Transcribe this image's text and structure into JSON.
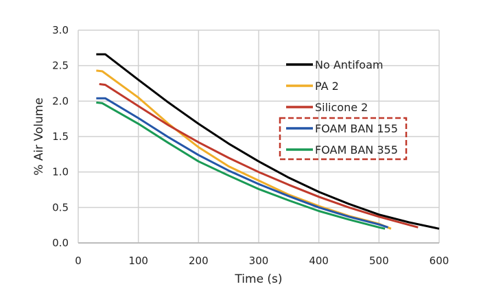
{
  "chart_data": {
    "type": "line",
    "title": "",
    "xlabel": "Time (s)",
    "ylabel": "% Air Volume",
    "xlim": [
      0,
      600
    ],
    "ylim": [
      0,
      3.0
    ],
    "xticks": [
      "0",
      "100",
      "200",
      "300",
      "400",
      "500",
      "600"
    ],
    "yticks": [
      "0.0",
      "0.5",
      "1.0",
      "1.5",
      "2.0",
      "2.5",
      "3.0"
    ],
    "grid": true,
    "legend_position": "top-right",
    "highlighted_legend_entries": [
      "FOAM BAN 155",
      "FOAM BAN 355"
    ],
    "series": [
      {
        "name": "No Antifoam",
        "color": "#000000",
        "x": [
          30,
          45,
          100,
          150,
          200,
          250,
          300,
          350,
          400,
          450,
          500,
          550,
          600
        ],
        "y": [
          2.66,
          2.66,
          2.3,
          1.98,
          1.68,
          1.4,
          1.15,
          0.92,
          0.72,
          0.55,
          0.4,
          0.29,
          0.2
        ]
      },
      {
        "name": "PA 2",
        "color": "#f0ad28",
        "x": [
          30,
          40,
          100,
          150,
          200,
          250,
          300,
          350,
          400,
          450,
          500,
          520
        ],
        "y": [
          2.43,
          2.42,
          2.05,
          1.68,
          1.35,
          1.08,
          0.88,
          0.68,
          0.52,
          0.38,
          0.27,
          0.2
        ]
      },
      {
        "name": "Silicone 2",
        "color": "#c0392b",
        "x": [
          35,
          45,
          100,
          150,
          200,
          250,
          300,
          350,
          400,
          450,
          500,
          565
        ],
        "y": [
          2.24,
          2.23,
          1.93,
          1.66,
          1.42,
          1.2,
          1.0,
          0.82,
          0.65,
          0.5,
          0.37,
          0.22
        ]
      },
      {
        "name": "FOAM BAN 155",
        "color": "#2456a8",
        "x": [
          30,
          45,
          100,
          150,
          200,
          250,
          300,
          350,
          400,
          450,
          500,
          515
        ],
        "y": [
          2.04,
          2.04,
          1.76,
          1.49,
          1.24,
          1.02,
          0.83,
          0.66,
          0.5,
          0.37,
          0.26,
          0.22
        ]
      },
      {
        "name": "FOAM BAN 355",
        "color": "#1a9a55",
        "x": [
          30,
          40,
          100,
          150,
          200,
          250,
          300,
          350,
          400,
          450,
          500,
          510
        ],
        "y": [
          1.98,
          1.97,
          1.68,
          1.41,
          1.15,
          0.95,
          0.76,
          0.6,
          0.45,
          0.33,
          0.22,
          0.2
        ]
      }
    ]
  }
}
